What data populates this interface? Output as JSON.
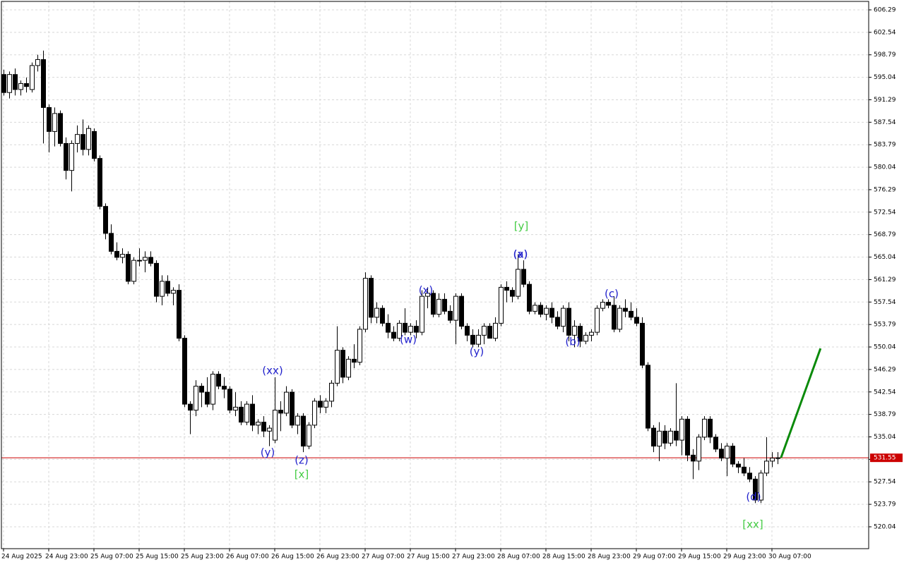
{
  "chart_data": {
    "type": "candlestick",
    "candles": [
      [
        595.5,
        596.3,
        592.0,
        592.5
      ],
      [
        592.5,
        596.0,
        591.5,
        595.5
      ],
      [
        595.5,
        596.5,
        592.0,
        593.0
      ],
      [
        593.0,
        594.5,
        592.0,
        594.0
      ],
      [
        594.0,
        595.0,
        592.5,
        593.5
      ],
      [
        593.0,
        597.5,
        592.5,
        597.0
      ],
      [
        597.0,
        598.8,
        596.0,
        598.0
      ],
      [
        598.0,
        599.5,
        584.0,
        590.0
      ],
      [
        590.0,
        590.5,
        582.5,
        586.0
      ],
      [
        586.0,
        590.0,
        583.5,
        589.0
      ],
      [
        589.0,
        589.5,
        583.5,
        584.0
      ],
      [
        584.0,
        585.0,
        578.0,
        579.5
      ],
      [
        579.5,
        584.5,
        576.0,
        584.0
      ],
      [
        584.0,
        587.0,
        582.5,
        585.5
      ],
      [
        585.5,
        588.0,
        582.0,
        583.0
      ],
      [
        583.0,
        587.0,
        582.0,
        586.5
      ],
      [
        586.0,
        586.5,
        581.0,
        581.5
      ],
      [
        581.5,
        582.0,
        573.0,
        573.5
      ],
      [
        573.5,
        574.0,
        568.0,
        569.0
      ],
      [
        569.0,
        570.5,
        565.5,
        566.0
      ],
      [
        566.0,
        567.5,
        564.5,
        565.0
      ],
      [
        565.0,
        566.5,
        564.0,
        565.5
      ],
      [
        565.5,
        566.0,
        560.5,
        561.0
      ],
      [
        561.0,
        565.0,
        560.5,
        564.5
      ],
      [
        564.5,
        566.5,
        563.5,
        564.5
      ],
      [
        564.5,
        566.0,
        562.5,
        565.0
      ],
      [
        565.0,
        566.0,
        563.5,
        564.0
      ],
      [
        564.0,
        564.5,
        557.5,
        558.5
      ],
      [
        558.5,
        562.0,
        557.0,
        561.0
      ],
      [
        561.0,
        562.0,
        558.5,
        559.0
      ],
      [
        559.0,
        560.0,
        557.0,
        559.5
      ],
      [
        559.5,
        560.5,
        551.0,
        551.5
      ],
      [
        551.5,
        552.0,
        540.0,
        540.5
      ],
      [
        540.5,
        541.0,
        535.5,
        539.5
      ],
      [
        539.5,
        544.5,
        538.5,
        543.5
      ],
      [
        543.5,
        544.0,
        540.0,
        542.5
      ],
      [
        542.5,
        545.0,
        540.0,
        540.5
      ],
      [
        540.5,
        546.0,
        539.5,
        545.5
      ],
      [
        545.5,
        546.0,
        543.0,
        543.5
      ],
      [
        543.5,
        545.0,
        541.5,
        543.0
      ],
      [
        543.0,
        543.5,
        539.0,
        539.5
      ],
      [
        539.5,
        542.5,
        538.5,
        540.0
      ],
      [
        540.0,
        541.0,
        537.0,
        537.5
      ],
      [
        537.5,
        541.0,
        537.0,
        540.5
      ],
      [
        540.5,
        542.0,
        536.0,
        537.0
      ],
      [
        537.0,
        538.0,
        535.5,
        537.5
      ],
      [
        537.5,
        538.5,
        535.0,
        536.0
      ],
      [
        536.0,
        537.0,
        533.5,
        536.5
      ],
      [
        534.5,
        545.0,
        534.0,
        539.5
      ],
      [
        539.5,
        541.0,
        536.0,
        539.0
      ],
      [
        539.0,
        543.5,
        538.5,
        542.5
      ],
      [
        542.5,
        543.0,
        536.5,
        537.0
      ],
      [
        537.0,
        539.0,
        535.5,
        538.5
      ],
      [
        538.5,
        539.0,
        532.5,
        533.5
      ],
      [
        533.5,
        537.5,
        533.0,
        537.0
      ],
      [
        537.0,
        541.5,
        536.5,
        541.0
      ],
      [
        541.0,
        542.0,
        539.0,
        540.0
      ],
      [
        540.0,
        541.5,
        539.0,
        541.0
      ],
      [
        541.0,
        544.5,
        540.0,
        544.0
      ],
      [
        544.0,
        553.5,
        543.5,
        549.5
      ],
      [
        549.5,
        550.0,
        544.0,
        545.0
      ],
      [
        545.0,
        548.5,
        544.5,
        548.0
      ],
      [
        548.0,
        550.5,
        546.5,
        547.5
      ],
      [
        547.5,
        553.5,
        547.0,
        553.0
      ],
      [
        553.0,
        562.5,
        552.5,
        561.5
      ],
      [
        561.5,
        562.0,
        554.0,
        555.0
      ],
      [
        555.0,
        557.5,
        554.0,
        556.5
      ],
      [
        556.5,
        557.0,
        553.5,
        554.0
      ],
      [
        554.0,
        555.5,
        551.5,
        552.5
      ],
      [
        552.5,
        553.5,
        551.0,
        551.5
      ],
      [
        551.5,
        554.5,
        551.0,
        554.0
      ],
      [
        554.0,
        556.5,
        552.0,
        552.5
      ],
      [
        552.5,
        554.0,
        552.0,
        553.5
      ],
      [
        553.5,
        554.5,
        551.5,
        552.5
      ],
      [
        552.5,
        559.5,
        552.0,
        558.5
      ],
      [
        558.5,
        560.0,
        556.5,
        559.0
      ],
      [
        559.0,
        559.5,
        555.0,
        555.5
      ],
      [
        555.5,
        559.0,
        555.0,
        558.0
      ],
      [
        558.0,
        559.0,
        555.5,
        556.0
      ],
      [
        556.0,
        557.0,
        554.0,
        554.5
      ],
      [
        554.5,
        559.0,
        550.5,
        558.5
      ],
      [
        558.5,
        559.0,
        553.0,
        553.5
      ],
      [
        553.5,
        554.0,
        551.0,
        552.0
      ],
      [
        552.0,
        553.0,
        550.0,
        550.5
      ],
      [
        550.5,
        553.0,
        550.0,
        552.0
      ],
      [
        552.0,
        554.0,
        550.5,
        553.5
      ],
      [
        553.5,
        554.0,
        551.5,
        551.5
      ],
      [
        551.5,
        555.0,
        551.0,
        554.0
      ],
      [
        554.0,
        560.5,
        553.5,
        560.0
      ],
      [
        560.0,
        561.0,
        557.5,
        559.5
      ],
      [
        559.5,
        560.0,
        557.5,
        558.5
      ],
      [
        558.5,
        565.5,
        558.0,
        563.0
      ],
      [
        563.0,
        564.5,
        560.0,
        560.5
      ],
      [
        560.5,
        561.0,
        555.5,
        556.0
      ],
      [
        556.0,
        557.5,
        555.5,
        557.0
      ],
      [
        557.0,
        557.5,
        555.0,
        555.5
      ],
      [
        555.5,
        557.0,
        554.5,
        556.5
      ],
      [
        556.5,
        557.5,
        554.0,
        555.0
      ],
      [
        555.0,
        556.0,
        553.0,
        553.5
      ],
      [
        553.5,
        557.0,
        552.5,
        556.5
      ],
      [
        556.5,
        557.5,
        551.0,
        552.0
      ],
      [
        552.0,
        554.5,
        550.0,
        553.5
      ],
      [
        553.5,
        554.0,
        550.0,
        551.0
      ],
      [
        551.0,
        552.5,
        550.5,
        552.0
      ],
      [
        552.0,
        553.0,
        551.0,
        552.5
      ],
      [
        552.5,
        557.0,
        552.0,
        556.5
      ],
      [
        556.5,
        558.0,
        556.0,
        557.5
      ],
      [
        557.5,
        558.0,
        556.5,
        557.0
      ],
      [
        557.0,
        558.5,
        552.5,
        553.0
      ],
      [
        553.0,
        557.0,
        552.5,
        556.5
      ],
      [
        556.5,
        558.0,
        555.0,
        556.0
      ],
      [
        556.0,
        557.5,
        554.5,
        555.0
      ],
      [
        555.0,
        556.5,
        553.5,
        554.0
      ],
      [
        554.0,
        555.0,
        546.5,
        547.0
      ],
      [
        547.0,
        547.5,
        536.0,
        536.5
      ],
      [
        536.5,
        537.0,
        532.5,
        533.5
      ],
      [
        533.5,
        537.5,
        531.0,
        536.0
      ],
      [
        536.0,
        537.0,
        533.0,
        534.0
      ],
      [
        534.0,
        536.5,
        533.5,
        536.0
      ],
      [
        536.0,
        544.0,
        533.5,
        534.5
      ],
      [
        534.5,
        538.5,
        532.0,
        538.0
      ],
      [
        538.0,
        538.5,
        531.0,
        532.0
      ],
      [
        532.0,
        533.0,
        528.0,
        531.0
      ],
      [
        531.0,
        535.5,
        529.5,
        535.0
      ],
      [
        535.0,
        538.5,
        534.5,
        538.0
      ],
      [
        538.0,
        538.5,
        534.0,
        535.0
      ],
      [
        535.0,
        535.5,
        532.5,
        533.0
      ],
      [
        533.0,
        534.0,
        531.0,
        531.5
      ],
      [
        531.5,
        534.0,
        528.5,
        533.5
      ],
      [
        533.5,
        534.0,
        530.0,
        530.5
      ],
      [
        530.5,
        531.0,
        529.0,
        530.0
      ],
      [
        530.0,
        531.5,
        528.5,
        529.0
      ],
      [
        529.0,
        530.0,
        527.5,
        528.0
      ],
      [
        528.0,
        528.5,
        524.0,
        524.5
      ],
      [
        524.5,
        529.5,
        524.0,
        529.0
      ],
      [
        529.0,
        535.0,
        528.5,
        531.0
      ],
      [
        531.0,
        532.5,
        530.0,
        531.5
      ],
      [
        531.5,
        532.5,
        530.5,
        531.55
      ]
    ],
    "colors": {
      "up": "#ffffff",
      "down": "#000000",
      "outline": "#000000"
    },
    "ylim": [
      516.39,
      607.7
    ],
    "yticks": [
      520.04,
      523.79,
      527.54,
      531.29,
      535.04,
      538.79,
      542.54,
      546.29,
      550.04,
      553.79,
      557.54,
      561.29,
      565.04,
      568.79,
      572.54,
      576.29,
      580.04,
      583.79,
      587.54,
      591.29,
      595.04,
      598.79,
      602.54,
      606.29
    ],
    "xlim": [
      -0.375,
      153.125
    ],
    "xticks": [
      {
        "value": 0,
        "label": "24 Aug 2025"
      },
      {
        "value": 8,
        "label": "24 Aug 23:00"
      },
      {
        "value": 16,
        "label": "25 Aug 07:00"
      },
      {
        "value": 24,
        "label": "25 Aug 15:00"
      },
      {
        "value": 32,
        "label": "25 Aug 23:00"
      },
      {
        "value": 40,
        "label": "26 Aug 07:00"
      },
      {
        "value": 48,
        "label": "26 Aug 15:00"
      },
      {
        "value": 56,
        "label": "26 Aug 23:00"
      },
      {
        "value": 64,
        "label": "27 Aug 07:00"
      },
      {
        "value": 72,
        "label": "27 Aug 15:00"
      },
      {
        "value": 80,
        "label": "27 Aug 23:00"
      },
      {
        "value": 88,
        "label": "28 Aug 07:00"
      },
      {
        "value": 96,
        "label": "28 Aug 15:00"
      },
      {
        "value": 104,
        "label": "28 Aug 23:00"
      },
      {
        "value": 112,
        "label": "29 Aug 07:00"
      },
      {
        "value": 120,
        "label": "29 Aug 15:00"
      },
      {
        "value": 128,
        "label": "29 Aug 23:00"
      },
      {
        "value": 136,
        "label": "30 Aug 07:00"
      }
    ],
    "grid": true,
    "current_price": {
      "value": 531.55,
      "color": "#cc0000"
    },
    "forecast": {
      "color": "#0a8a0a",
      "x": [
        137.6,
        144.6
      ],
      "values": [
        531.55,
        549.8
      ]
    },
    "annotations": [
      {
        "text": "[y]",
        "color": "#44cc44"
      },
      {
        "text": "(x)",
        "color": "#2222cc"
      },
      {
        "text": "(a)",
        "color": "#2222cc"
      },
      {
        "text": "(x)",
        "color": "#2222cc"
      },
      {
        "text": "(w)",
        "color": "#2222cc"
      },
      {
        "text": "(y)",
        "color": "#2222cc"
      },
      {
        "text": "(b)",
        "color": "#2222cc"
      },
      {
        "text": "(c)",
        "color": "#2222cc"
      },
      {
        "text": "(xx)",
        "color": "#2222cc"
      },
      {
        "text": "(y)",
        "color": "#2222cc"
      },
      {
        "text": "(z)",
        "color": "#2222cc"
      },
      {
        "text": "[x]",
        "color": "#44cc44"
      },
      {
        "text": "(d)",
        "color": "#2222cc"
      },
      {
        "text": "[xx]",
        "color": "#44cc44"
      }
    ]
  }
}
